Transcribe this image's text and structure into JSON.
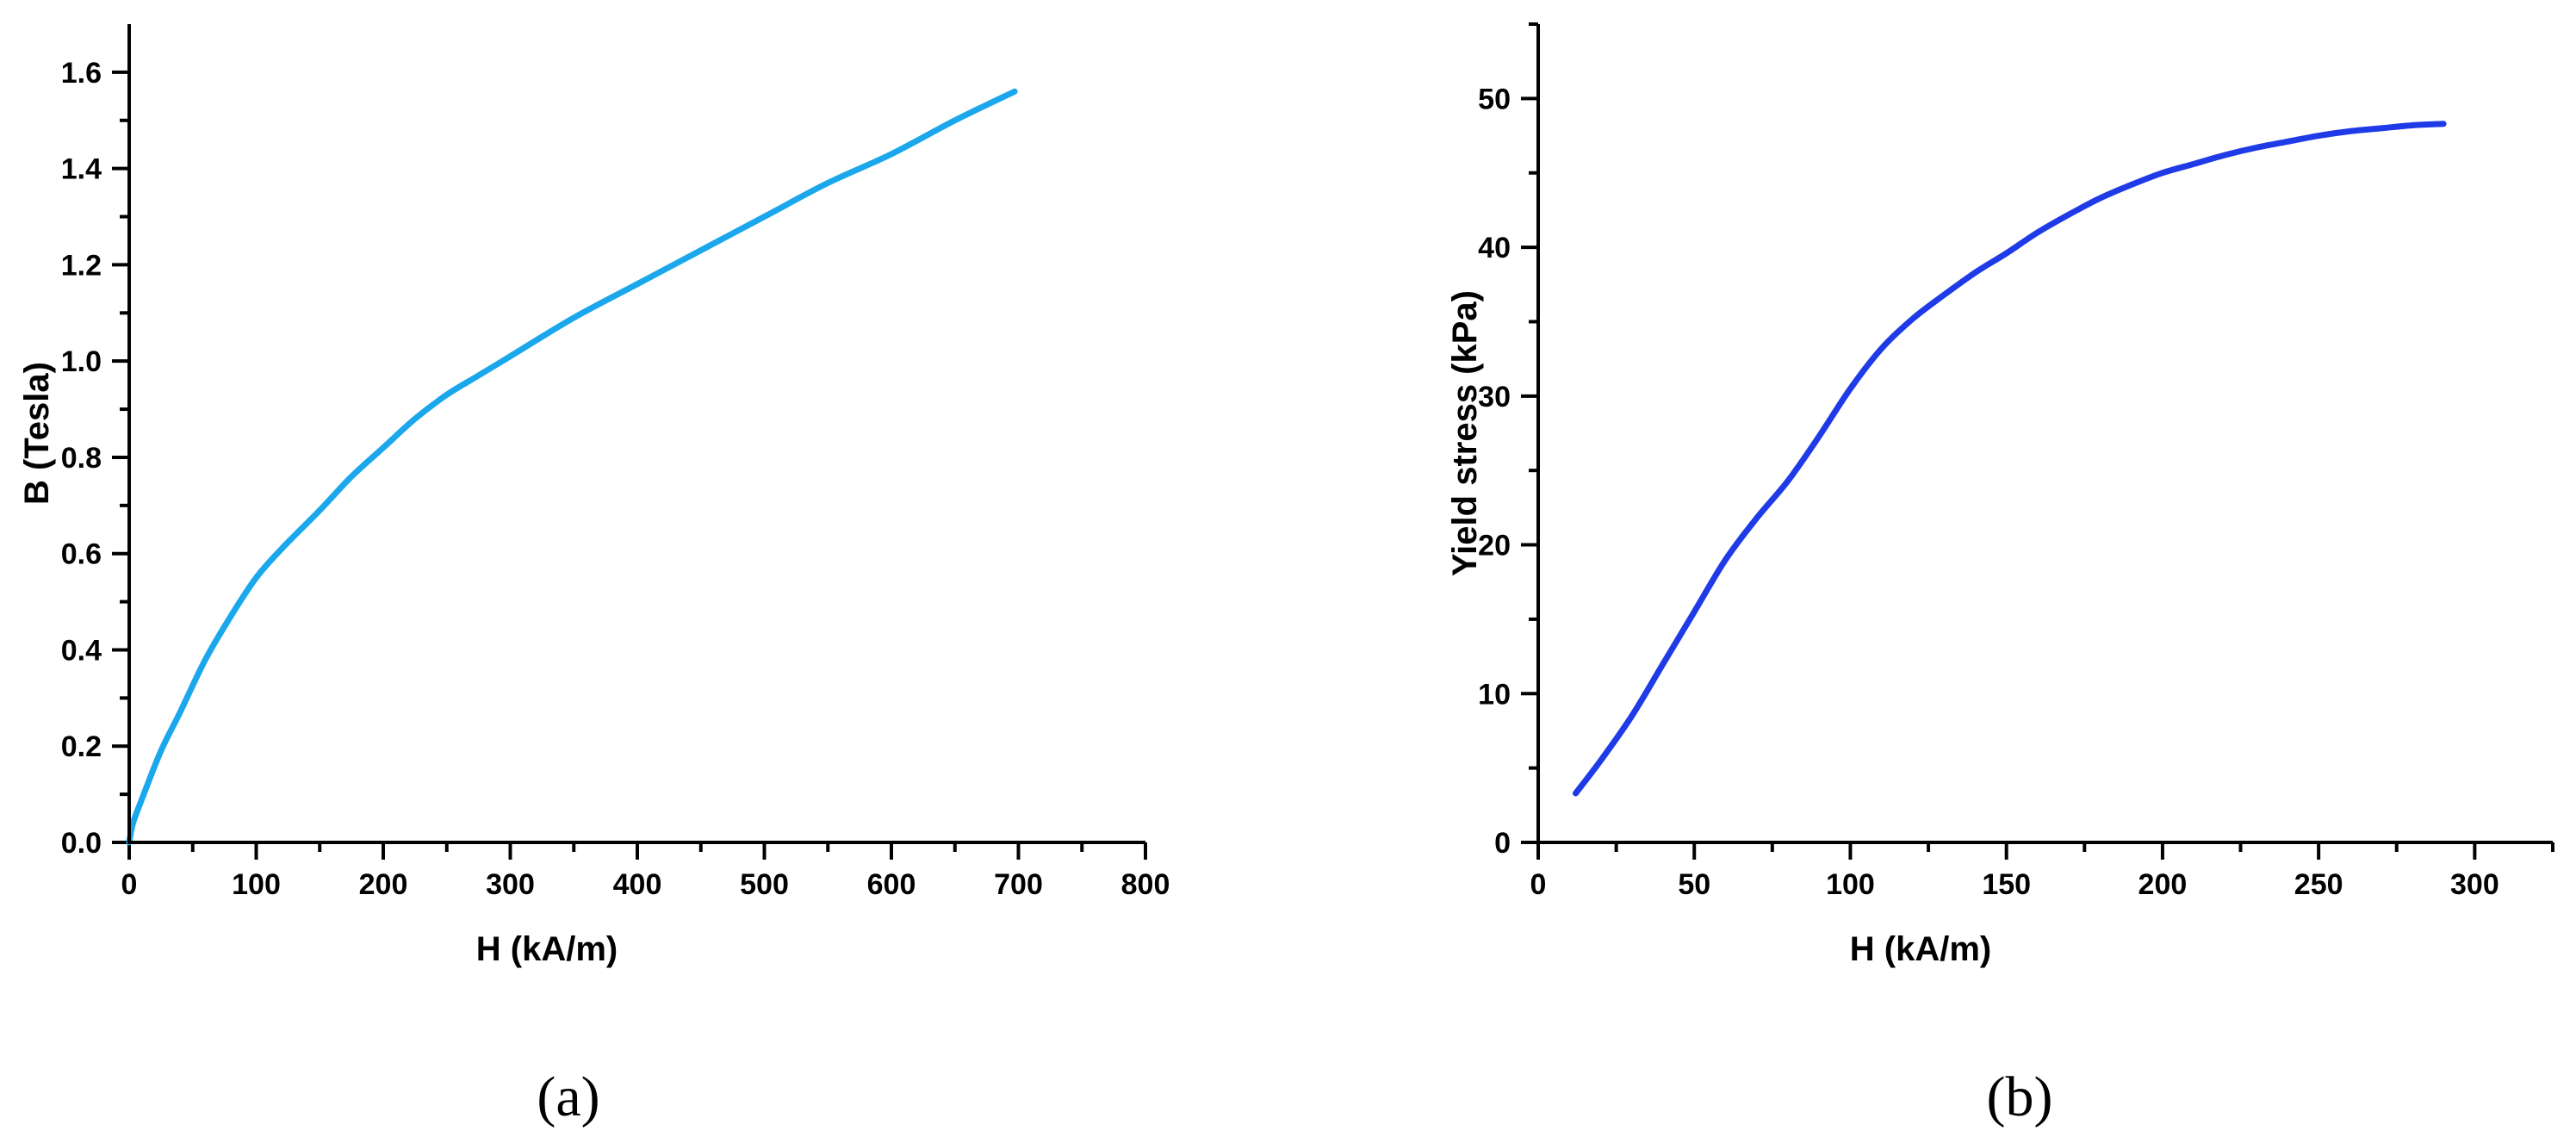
{
  "chart_data": [
    {
      "type": "line",
      "panel_label": "(a)",
      "xlabel": "H (kA/m)",
      "ylabel": "B (Tesla)",
      "xlim": [
        0,
        800
      ],
      "ylim": [
        0,
        1.7
      ],
      "xticks": [
        0,
        100,
        200,
        300,
        400,
        500,
        600,
        700,
        800
      ],
      "yticks": [
        0.0,
        0.2,
        0.4,
        0.6,
        0.8,
        1.0,
        1.2,
        1.4,
        1.6
      ],
      "xtick_labels": [
        "0",
        "100",
        "200",
        "300",
        "400",
        "500",
        "600",
        "700",
        "800"
      ],
      "ytick_labels": [
        "0.0",
        "0.2",
        "0.4",
        "0.6",
        "0.8",
        "1.0",
        "1.2",
        "1.4",
        "1.6"
      ],
      "grid": false,
      "series": [
        {
          "color": "#1aa7ec",
          "x": [
            0,
            3,
            10,
            25,
            40,
            60,
            80,
            100,
            120,
            150,
            175,
            200,
            225,
            250,
            275,
            300,
            350,
            400,
            450,
            500,
            550,
            600,
            650,
            697
          ],
          "y": [
            0,
            0.04,
            0.09,
            0.19,
            0.27,
            0.38,
            0.47,
            0.55,
            0.61,
            0.69,
            0.76,
            0.82,
            0.88,
            0.93,
            0.97,
            1.01,
            1.09,
            1.16,
            1.23,
            1.3,
            1.37,
            1.43,
            1.5,
            1.56
          ]
        }
      ]
    },
    {
      "type": "line",
      "panel_label": "(b)",
      "xlabel": "H (kA/m)",
      "ylabel": "Yield stress (kPa)",
      "xlim": [
        0,
        325
      ],
      "ylim": [
        0,
        55
      ],
      "xticks": [
        0,
        50,
        100,
        150,
        200,
        250,
        300
      ],
      "yticks": [
        0,
        10,
        20,
        30,
        40,
        50
      ],
      "xtick_labels": [
        "0",
        "50",
        "100",
        "150",
        "200",
        "250",
        "300"
      ],
      "ytick_labels": [
        "0",
        "10",
        "20",
        "30",
        "40",
        "50"
      ],
      "grid": false,
      "series": [
        {
          "color": "#1f3be8",
          "x": [
            12,
            20,
            30,
            40,
            50,
            60,
            70,
            80,
            90,
            100,
            110,
            120,
            130,
            140,
            150,
            160,
            170,
            180,
            190,
            200,
            210,
            220,
            230,
            240,
            250,
            260,
            270,
            280,
            290
          ],
          "y": [
            3.3,
            5.5,
            8.5,
            12.0,
            15.5,
            19.0,
            21.8,
            24.3,
            27.3,
            30.5,
            33.2,
            35.2,
            36.8,
            38.3,
            39.6,
            41.0,
            42.2,
            43.3,
            44.2,
            45.0,
            45.6,
            46.2,
            46.7,
            47.1,
            47.5,
            47.8,
            48.0,
            48.2,
            48.3
          ]
        }
      ]
    }
  ]
}
